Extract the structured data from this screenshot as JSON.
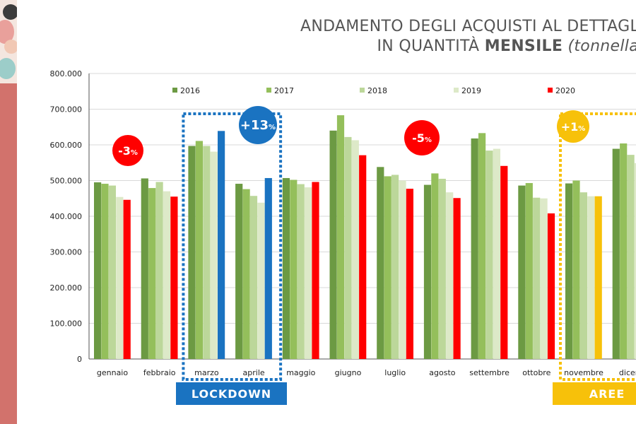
{
  "title": {
    "line1": "ANDAMENTO DEGLI ACQUISTI AL DETTAGL",
    "line2_prefix": "IN QUANTITÀ",
    "line2_strong": "MENSILE",
    "line2_unit": "(tonnella"
  },
  "colors": {
    "strip": "#d2726c",
    "lockdown": "#1a73c1",
    "aree": "#f7c10a",
    "drop": "#ff0000"
  },
  "chart_data": {
    "type": "bar",
    "categories": [
      "gennaio",
      "febbraio",
      "marzo",
      "aprile",
      "maggio",
      "giugno",
      "luglio",
      "agosto",
      "settembre",
      "ottobre",
      "novembre",
      "dicem"
    ],
    "ylim": [
      0,
      800000
    ],
    "yticks": [
      "0",
      "100.000",
      "200.000",
      "300.000",
      "400.000",
      "500.000",
      "600.000",
      "700.000",
      "800.000"
    ],
    "grid": true,
    "legend_position": "top",
    "series": [
      {
        "name": "2016",
        "color": "#6c9a43",
        "values": [
          495000,
          506000,
          597000,
          491000,
          507000,
          640000,
          538000,
          488000,
          618000,
          486000,
          492000,
          589000
        ]
      },
      {
        "name": "2017",
        "color": "#94bf5b",
        "values": [
          491000,
          479000,
          611000,
          476000,
          502000,
          683000,
          512000,
          520000,
          633000,
          493000,
          500000,
          604000
        ]
      },
      {
        "name": "2018",
        "color": "#bcd79a",
        "values": [
          486000,
          496000,
          597000,
          457000,
          490000,
          622000,
          516000,
          505000,
          584000,
          452000,
          467000,
          572000
        ]
      },
      {
        "name": "2019",
        "color": "#dde9c8",
        "values": [
          454000,
          470000,
          581000,
          438000,
          481000,
          613000,
          500000,
          467000,
          589000,
          450000,
          456000,
          549000
        ]
      },
      {
        "name": "2020",
        "color": "#ff0000",
        "values": [
          446000,
          455000,
          639000,
          507000,
          496000,
          571000,
          477000,
          451000,
          541000,
          408000,
          456000,
          null
        ]
      }
    ],
    "highlights": {
      "marzo": "#1a73c1",
      "aprile": "#1a73c1",
      "novembre": "#f7c10a"
    },
    "annotations": [
      {
        "text": "-3",
        "unit": "%",
        "category": "gennaio",
        "color": "#ff0000"
      },
      {
        "text": "+13",
        "unit": "%",
        "category": "aprile",
        "color": "#1a73c1"
      },
      {
        "text": "-5",
        "unit": "%",
        "category": "agosto",
        "color": "#ff0000"
      },
      {
        "text": "+1",
        "unit": "%",
        "category": "novembre",
        "color": "#f7c10a"
      }
    ],
    "period_labels": [
      {
        "text": "LOCKDOWN",
        "from": "marzo",
        "to": "aprile",
        "color": "#1a73c1"
      },
      {
        "text": "AREE",
        "from": "novembre",
        "to": "dicem",
        "color": "#f7c10a"
      }
    ]
  }
}
